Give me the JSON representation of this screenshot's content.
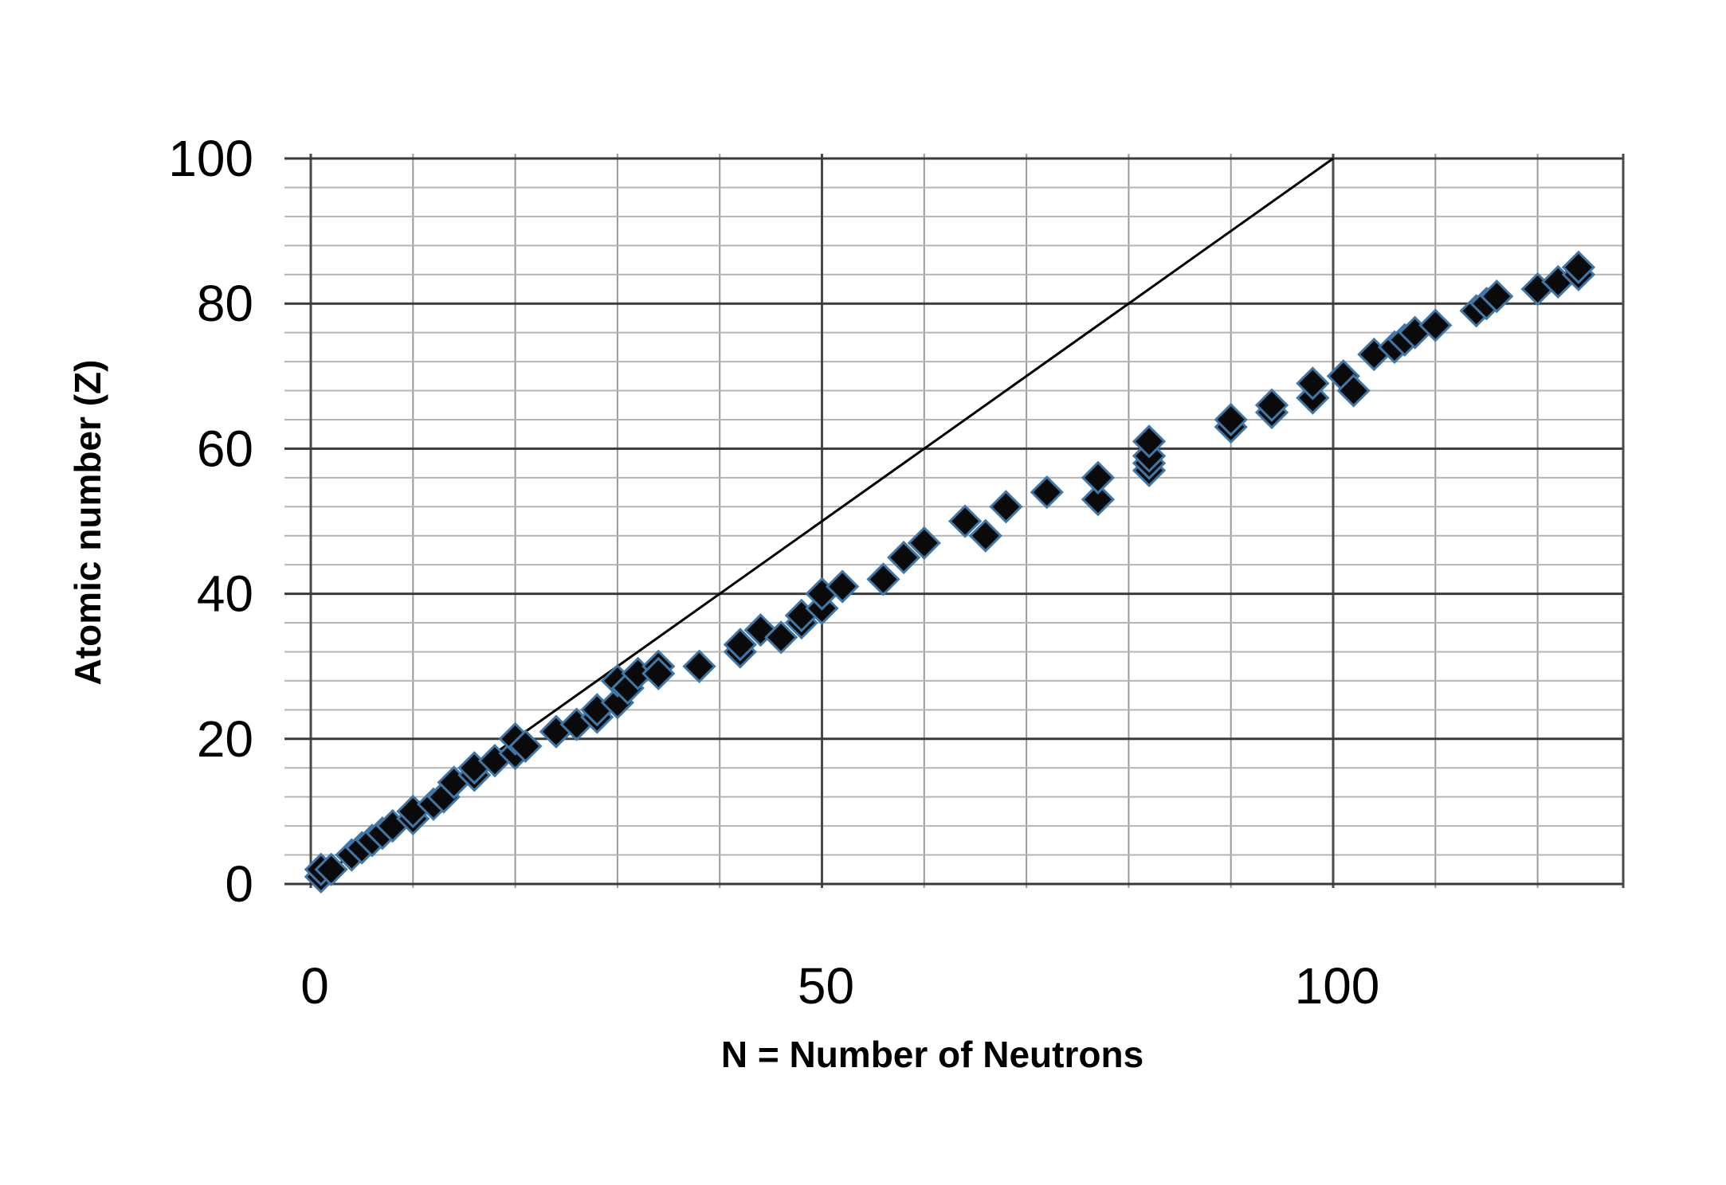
{
  "chart_data": {
    "type": "scatter",
    "title": "",
    "xlabel": "N = Number of Neutrons",
    "ylabel": "Atomic number (Z)",
    "xlim": [
      0,
      130
    ],
    "ylim": [
      0,
      100
    ],
    "x_ticks": [
      "0",
      "50",
      "100"
    ],
    "x_tick_values": [
      0,
      50,
      100
    ],
    "y_ticks": [
      "0",
      "20",
      "40",
      "60",
      "80",
      "100"
    ],
    "y_tick_values": [
      0,
      20,
      40,
      60,
      80,
      100
    ],
    "grid": true,
    "reference_line": {
      "x": [
        0,
        100
      ],
      "y": [
        0,
        100
      ]
    },
    "series": [
      {
        "marker": "diamond",
        "color": "#0a0a0a",
        "edge_color": "#3f78a8",
        "x": [
          1,
          1,
          2,
          4,
          5,
          6,
          7,
          8,
          10,
          10,
          12,
          13,
          14,
          16,
          16,
          18,
          20,
          20,
          21,
          24,
          24,
          26,
          28,
          28,
          30,
          30,
          31,
          32,
          34,
          34,
          38,
          42,
          42,
          44,
          46,
          48,
          48,
          50,
          50,
          52,
          56,
          58,
          60,
          64,
          66,
          68,
          72,
          77,
          77,
          82,
          82,
          82,
          82,
          90,
          90,
          94,
          94,
          98,
          98,
          101,
          102,
          104,
          106,
          107,
          108,
          110,
          114,
          115,
          116,
          120,
          122,
          124,
          124
        ],
        "y": [
          1,
          2,
          2,
          4,
          5,
          6,
          7,
          8,
          9,
          10,
          11,
          12,
          14,
          15,
          16,
          17,
          18,
          20,
          19,
          21,
          21,
          22,
          23,
          24,
          25,
          28,
          27,
          29,
          30,
          29,
          30,
          32,
          33,
          35,
          34,
          36,
          37,
          38,
          40,
          41,
          42,
          45,
          47,
          50,
          48,
          52,
          54,
          53,
          56,
          57,
          58,
          59,
          61,
          63,
          64,
          65,
          66,
          67,
          69,
          70,
          68,
          73,
          74,
          75,
          76,
          77,
          79,
          80,
          81,
          82,
          83,
          84,
          85
        ]
      }
    ]
  }
}
